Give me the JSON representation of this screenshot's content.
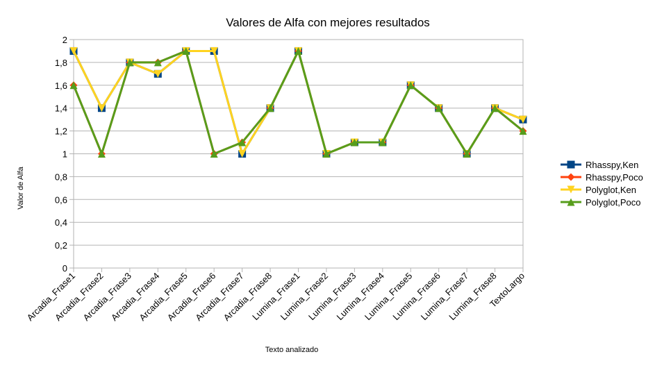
{
  "chart_data": {
    "type": "line",
    "title": "Valores de Alfa con mejores resultados",
    "xlabel": "Texto analizado",
    "ylabel": "Valor de Alfa",
    "ylim": [
      0,
      2
    ],
    "yticks": [
      "0",
      "0,2",
      "0,4",
      "0,6",
      "0,8",
      "1",
      "1,2",
      "1,4",
      "1,6",
      "1,8",
      "2"
    ],
    "grid": true,
    "legend_position": "right",
    "categories": [
      "Arcadia_Frase1",
      "Arcadia_Frase2",
      "Arcadia_Frase3",
      "Arcadia_Frase4",
      "Arcadia_Frase5",
      "Arcadia_Frase6",
      "Arcadia_Frase7",
      "Arcadia_Frase8",
      "Lumina_Frase1",
      "Lumina_Frase2",
      "Lumina_Frase3",
      "Lumina_Frase4",
      "Lumina_Frase5",
      "Lumina_Frase6",
      "Lumina_Frase7",
      "Lumina_Frase8",
      "TextoLargo"
    ],
    "series": [
      {
        "name": "Rhasspy,Ken",
        "color": "#004586",
        "marker": "square",
        "values": [
          1.9,
          1.4,
          1.8,
          1.7,
          1.9,
          1.9,
          1.0,
          1.4,
          1.9,
          1.0,
          1.1,
          1.1,
          1.6,
          1.4,
          1.0,
          1.4,
          1.3
        ]
      },
      {
        "name": "Rhasspy,Poco",
        "color": "#ff420e",
        "marker": "diamond",
        "values": [
          1.6,
          1.0,
          1.8,
          1.8,
          1.9,
          1.0,
          1.1,
          1.4,
          1.9,
          1.0,
          1.1,
          1.1,
          1.6,
          1.4,
          1.0,
          1.4,
          1.2
        ]
      },
      {
        "name": "Polyglot,Ken",
        "color": "#ffd320",
        "marker": "triangle-down",
        "values": [
          1.9,
          1.4,
          1.8,
          1.7,
          1.9,
          1.9,
          1.0,
          1.4,
          1.9,
          1.0,
          1.1,
          1.1,
          1.6,
          1.4,
          1.0,
          1.4,
          1.3
        ]
      },
      {
        "name": "Polyglot,Poco",
        "color": "#579d1c",
        "marker": "triangle-up",
        "values": [
          1.6,
          1.0,
          1.8,
          1.8,
          1.9,
          1.0,
          1.1,
          1.4,
          1.9,
          1.0,
          1.1,
          1.1,
          1.6,
          1.4,
          1.0,
          1.4,
          1.2
        ]
      }
    ]
  }
}
